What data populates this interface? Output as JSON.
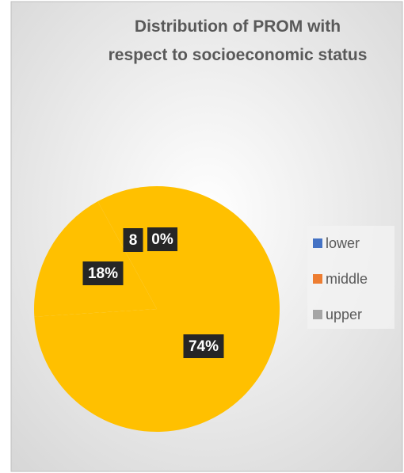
{
  "chart_data": {
    "type": "pie",
    "title": "Distribution of PROM with respect to socioeconomic status",
    "categories": [
      "lower",
      "middle",
      "upper",
      null
    ],
    "values": [
      74,
      18,
      8,
      0
    ],
    "value_labels": [
      "74%",
      "18%",
      "8",
      "0%"
    ],
    "colors": [
      "#FFC000",
      "#FFC000",
      "#FFC000",
      "#FFC000"
    ],
    "legend_colors": [
      "#4472C4",
      "#ED7D31",
      "#A5A5A5"
    ],
    "legend": "right"
  }
}
